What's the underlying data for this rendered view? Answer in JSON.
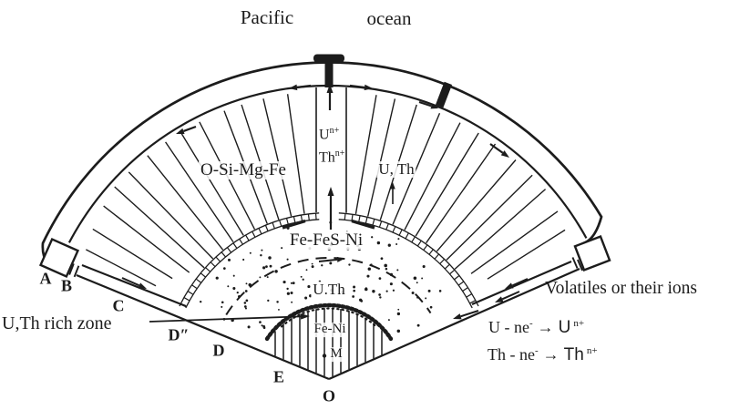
{
  "colors": {
    "ink": "#1c1c1c",
    "paper": "#ffffff"
  },
  "title": {
    "word1": "Pacific",
    "word2": "ocean"
  },
  "region_labels": {
    "mantle_composition": "O-Si-Mg-Fe",
    "mantle_uth": "U, Th",
    "outer_core_composition": "Fe-FeS-Ni",
    "core_uth": "U.Th",
    "inner_core_composition": "Fe-Ni",
    "center_point": "M"
  },
  "plume_ions": {
    "u": "U",
    "u_sup": "n+",
    "th": "Th",
    "th_sup": "n+"
  },
  "annotations": {
    "uth_rich_zone": "U,Th rich zone",
    "volatiles": "Volatiles or their ions"
  },
  "equations": [
    {
      "lhs": "U - ne",
      "electron_sup": "-",
      "arrow": "→",
      "rhs": "U",
      "rhs_sup": "n+"
    },
    {
      "lhs": "Th - ne",
      "electron_sup": "-",
      "arrow": "→",
      "rhs": "Th",
      "rhs_sup": "n+"
    }
  ],
  "boundary_letters": [
    {
      "label": "A"
    },
    {
      "label": "B"
    },
    {
      "label": "C"
    },
    {
      "label": "D″"
    },
    {
      "label": "D"
    },
    {
      "label": "E"
    },
    {
      "label": "O"
    }
  ]
}
